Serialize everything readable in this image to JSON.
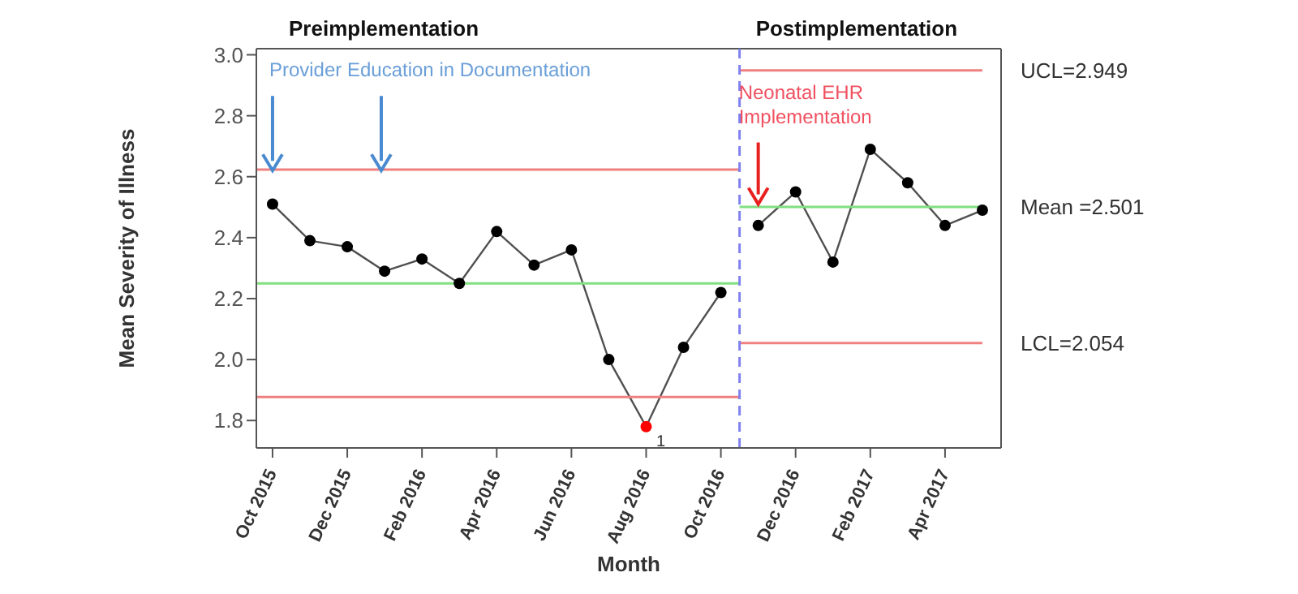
{
  "chart_data": {
    "type": "line",
    "xlabel": "Month",
    "ylabel": "Mean Severity of Illness",
    "xlim": [
      "2015-09-18",
      "2017-05-16"
    ],
    "ylim": [
      1.71,
      3.02
    ],
    "xticks": [
      {
        "value": "2015-10",
        "label": "Oct 2015"
      },
      {
        "value": "2015-12",
        "label": "Dec 2015"
      },
      {
        "value": "2016-02",
        "label": "Feb 2016"
      },
      {
        "value": "2016-04",
        "label": "Apr 2016"
      },
      {
        "value": "2016-06",
        "label": "Jun 2016"
      },
      {
        "value": "2016-08",
        "label": "Aug 2016"
      },
      {
        "value": "2016-10",
        "label": "Oct 2016"
      },
      {
        "value": "2016-12",
        "label": "Dec 2016"
      },
      {
        "value": "2017-02",
        "label": "Feb 2017"
      },
      {
        "value": "2017-04",
        "label": "Apr 2017"
      }
    ],
    "yticks": [
      1.8,
      {
        "value": 2.0,
        "label": "2.0"
      },
      2.2,
      2.4,
      2.6,
      2.8,
      {
        "value": 3.0,
        "label": "3.0"
      }
    ],
    "series": [
      {
        "type": "line",
        "marker": "circle",
        "color": "#505050",
        "x": [
          "2015-10",
          "2015-11",
          "2015-12",
          "2016-01",
          "2016-02",
          "2016-03",
          "2016-04",
          "2016-05",
          "2016-06",
          "2016-07",
          "2016-08",
          "2016-09",
          "2016-10"
        ],
        "values": [
          2.51,
          2.39,
          2.37,
          2.29,
          2.33,
          2.25,
          2.42,
          2.31,
          2.36,
          2.0,
          1.78,
          2.04,
          2.22
        ],
        "colors": [
          "#000000",
          "#000000",
          "#000000",
          "#000000",
          "#000000",
          "#000000",
          "#000000",
          "#000000",
          "#000000",
          "#000000",
          "#ff0000",
          "#000000",
          "#000000"
        ]
      },
      {
        "type": "line",
        "marker": "circle",
        "color": "#505050",
        "x": [
          "2016-11",
          "2016-12",
          "2017-01",
          "2017-02",
          "2017-03",
          "2017-04",
          "2017-05"
        ],
        "values": [
          2.44,
          2.55,
          2.32,
          2.69,
          2.58,
          2.44,
          2.49
        ],
        "colors": [
          "#000000",
          "#000000",
          "#000000",
          "#000000",
          "#000000",
          "#000000",
          "#000000"
        ]
      },
      {
        "type": "line",
        "marker": "none",
        "color": "#f08080",
        "x": [
          "2015-09-18",
          "2016-10-16"
        ],
        "values": [
          2.623,
          2.623
        ]
      },
      {
        "type": "line",
        "marker": "none",
        "color": "#80e080",
        "x": [
          "2015-09-18",
          "2016-10-16"
        ],
        "values": [
          2.25,
          2.25
        ]
      },
      {
        "type": "line",
        "marker": "none",
        "color": "#f08080",
        "x": [
          "2015-09-18",
          "2016-10-16"
        ],
        "values": [
          1.877,
          1.877
        ]
      },
      {
        "type": "line",
        "marker": "none",
        "color": "#f08080",
        "x": [
          "2016-10-16",
          "2017-05"
        ],
        "values": [
          2.949,
          2.949
        ]
      },
      {
        "type": "line",
        "marker": "none",
        "color": "#80e080",
        "x": [
          "2016-10-16",
          "2017-05"
        ],
        "values": [
          2.501,
          2.501
        ]
      },
      {
        "type": "line",
        "marker": "none",
        "color": "#f08080",
        "x": [
          "2016-10-16",
          "2017-05"
        ],
        "values": [
          2.054,
          2.054
        ]
      }
    ],
    "ref_lines": [
      {
        "axis": "x",
        "value": "2016-10-16",
        "color": "#8080f0",
        "line_style": "dashed"
      }
    ],
    "annotations": [
      "Preimplementation",
      "Postimplementation",
      {
        "text": "Provider Education in Documentation",
        "x": "2015-10",
        "y": 2.62
      },
      {
        "text": "Neonatal EHR Implementation",
        "x": "2016-11",
        "y": 2.51
      },
      {
        "text": "UCL=2.949",
        "x": "2017-05",
        "y": 2.949
      },
      {
        "text": "Mean =2.501",
        "x": "2017-05",
        "y": 2.501
      },
      {
        "text": "LCL=2.054",
        "x": "2017-05",
        "y": 2.054
      },
      {
        "text": "1",
        "x": "2016-08",
        "y": 1.78
      }
    ]
  }
}
